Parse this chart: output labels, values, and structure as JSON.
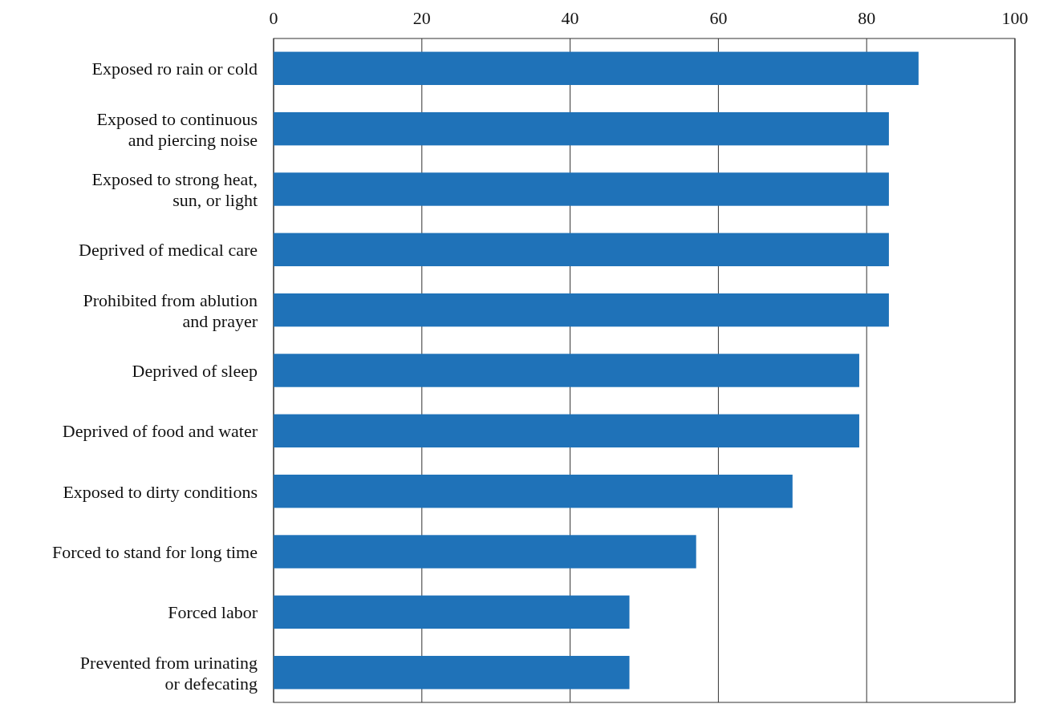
{
  "chart_data": {
    "type": "bar",
    "orientation": "horizontal",
    "categories": [
      "Exposed ro rain or cold",
      "Exposed to continuous and piercing noise",
      "Exposed to strong heat, sun, or light",
      "Deprived of medical care",
      "Prohibited from ablution and prayer",
      "Deprived of sleep",
      "Deprived of food and water",
      "Exposed to dirty conditions",
      "Forced to stand for long time",
      "Forced labor",
      "Prevented from urinating or defecating"
    ],
    "values": [
      87,
      83,
      83,
      83,
      83,
      79,
      79,
      70,
      57,
      48,
      48
    ],
    "color": "#1f72b8",
    "xlim": [
      0,
      100
    ],
    "xticks": [
      0,
      20,
      40,
      60,
      80,
      100
    ],
    "grid": "x"
  }
}
